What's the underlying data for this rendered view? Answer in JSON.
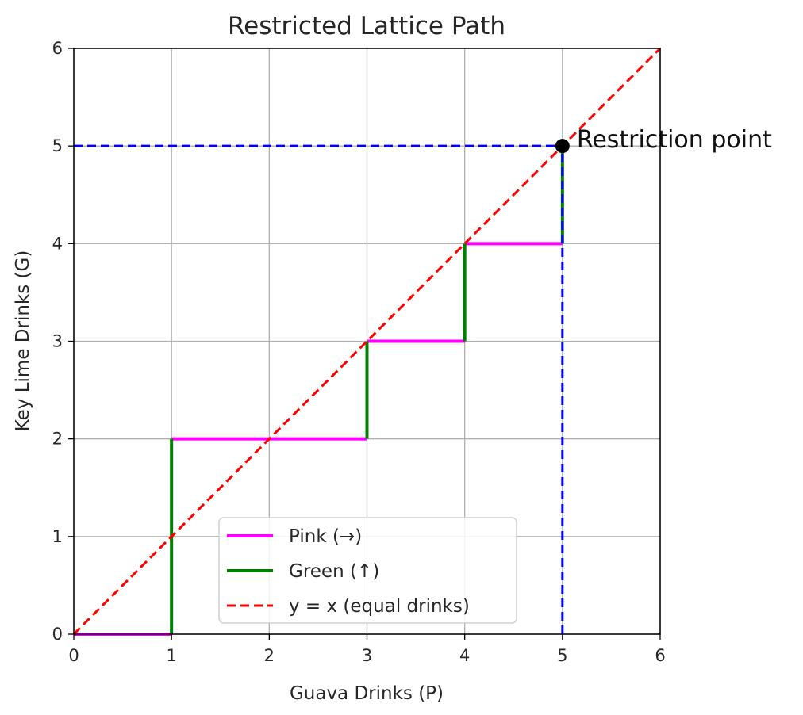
{
  "chart_data": {
    "type": "line",
    "title": "Restricted Lattice Path",
    "xlabel": "Guava Drinks (P)",
    "ylabel": "Key Lime Drinks (G)",
    "xlim": [
      0,
      6
    ],
    "ylim": [
      0,
      6
    ],
    "xticks": [
      "0",
      "1",
      "2",
      "3",
      "4",
      "5",
      "6"
    ],
    "yticks": [
      "0",
      "1",
      "2",
      "3",
      "4",
      "5",
      "6"
    ],
    "grid": true,
    "legend": {
      "placement": "lower-center",
      "entries": [
        {
          "label": "Pink (→)",
          "color": "#ff00ff",
          "style": "solid"
        },
        {
          "label": "Green (↑)",
          "color": "#008000",
          "style": "solid"
        },
        {
          "label": "y = x (equal drinks)",
          "color": "#ff0000",
          "style": "dashed"
        }
      ]
    },
    "pink_segments": [
      {
        "from": [
          0,
          0
        ],
        "to": [
          1,
          0
        ]
      },
      {
        "from": [
          1,
          2
        ],
        "to": [
          3,
          2
        ]
      },
      {
        "from": [
          3,
          3
        ],
        "to": [
          4,
          3
        ]
      },
      {
        "from": [
          4,
          4
        ],
        "to": [
          5,
          4
        ]
      }
    ],
    "green_segments": [
      {
        "from": [
          1,
          0
        ],
        "to": [
          1,
          2
        ]
      },
      {
        "from": [
          3,
          2
        ],
        "to": [
          3,
          3
        ]
      },
      {
        "from": [
          4,
          3
        ],
        "to": [
          4,
          4
        ]
      },
      {
        "from": [
          5,
          4
        ],
        "to": [
          5,
          5
        ]
      }
    ],
    "diagonal": {
      "from": [
        0,
        0
      ],
      "to": [
        6,
        6
      ],
      "color": "#ff0000"
    },
    "restriction_lines": [
      {
        "from": [
          0,
          5
        ],
        "to": [
          5,
          5
        ],
        "color": "#0000ff"
      },
      {
        "from": [
          5,
          0
        ],
        "to": [
          5,
          5
        ],
        "color": "#0000ff"
      }
    ],
    "restriction_point": {
      "x": 5,
      "y": 5,
      "label": "Restriction point",
      "color": "#000000"
    }
  }
}
